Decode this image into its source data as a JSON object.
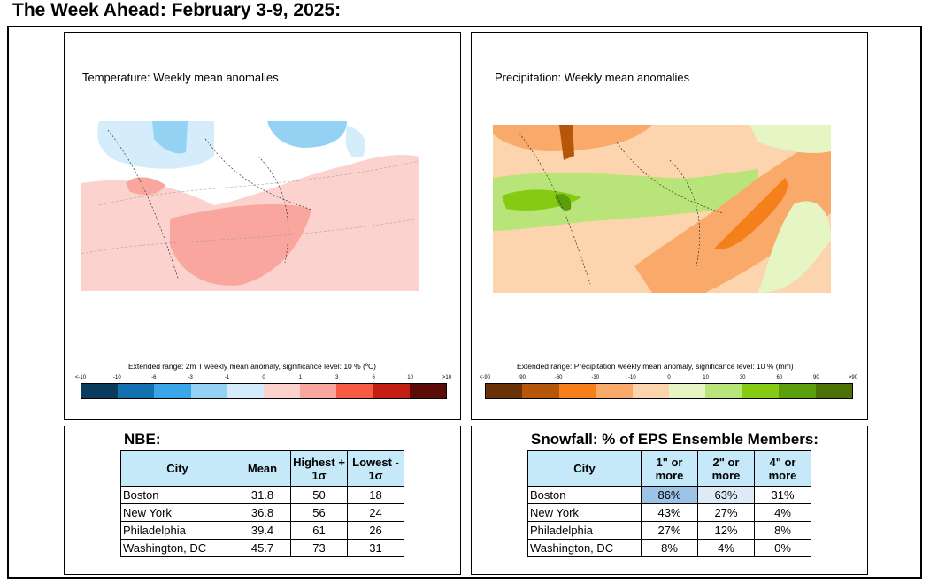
{
  "page": {
    "title": "The Week Ahead: February 3-9, 2025:"
  },
  "temperature": {
    "label": "Temperature: Weekly mean anomalies",
    "colorbar_title": "Extended range: 2m T weekly mean anomaly, significance level: 10 % (ºC)",
    "ticks": [
      "<-10",
      "-10",
      "-6",
      "-3",
      "-1",
      "0",
      "1",
      "3",
      "6",
      "10",
      ">10"
    ],
    "colors": [
      "#0a3a5c",
      "#1471b0",
      "#3aa6e8",
      "#93d2f2",
      "#d5ecfb",
      "#fcd2cf",
      "#f9a79e",
      "#f65a45",
      "#c31e12",
      "#5c0c08"
    ]
  },
  "precipitation": {
    "label": "Precipitation: Weekly mean anomalies",
    "colorbar_title": "Extended range: Precipitation weekly mean anomaly, significance level: 10 % (mm)",
    "ticks": [
      "<-90",
      "-90",
      "-60",
      "-30",
      "-10",
      "0",
      "10",
      "30",
      "60",
      "90",
      ">90"
    ],
    "colors": [
      "#6b3107",
      "#b6560a",
      "#f57f1b",
      "#f9a96a",
      "#fcd4ae",
      "#e5f5c4",
      "#b9e479",
      "#86cb13",
      "#5a9f0b",
      "#4e7106"
    ]
  },
  "nbe": {
    "title": "NBE:",
    "headers": {
      "city": "City",
      "mean": "Mean",
      "high_a": "Highest +",
      "high_b": "1σ",
      "low_a": "Lowest -",
      "low_b": "1σ"
    },
    "rows": [
      {
        "city": "Boston",
        "mean": "31.8",
        "high": "50",
        "low": "18"
      },
      {
        "city": "New York",
        "mean": "36.8",
        "high": "56",
        "low": "24"
      },
      {
        "city": "Philadelphia",
        "mean": "39.4",
        "high": "61",
        "low": "26"
      },
      {
        "city": "Washington, DC",
        "mean": "45.7",
        "high": "73",
        "low": "31"
      }
    ]
  },
  "snow": {
    "title": "Snowfall: % of EPS Ensemble Members:",
    "headers": {
      "city": "City",
      "c1a": "1\" or",
      "c1b": "more",
      "c2a": "2\" or",
      "c2b": "more",
      "c3a": "4\" or",
      "c3b": "more"
    },
    "rows": [
      {
        "city": "Boston",
        "c1": "86%",
        "c2": "63%",
        "c3": "31%"
      },
      {
        "city": "New York",
        "c1": "43%",
        "c2": "27%",
        "c3": "4%"
      },
      {
        "city": "Philadelphia",
        "c1": "27%",
        "c2": "12%",
        "c3": "8%"
      },
      {
        "city": "Washington, DC",
        "c1": "8%",
        "c2": "4%",
        "c3": "0%"
      }
    ]
  }
}
